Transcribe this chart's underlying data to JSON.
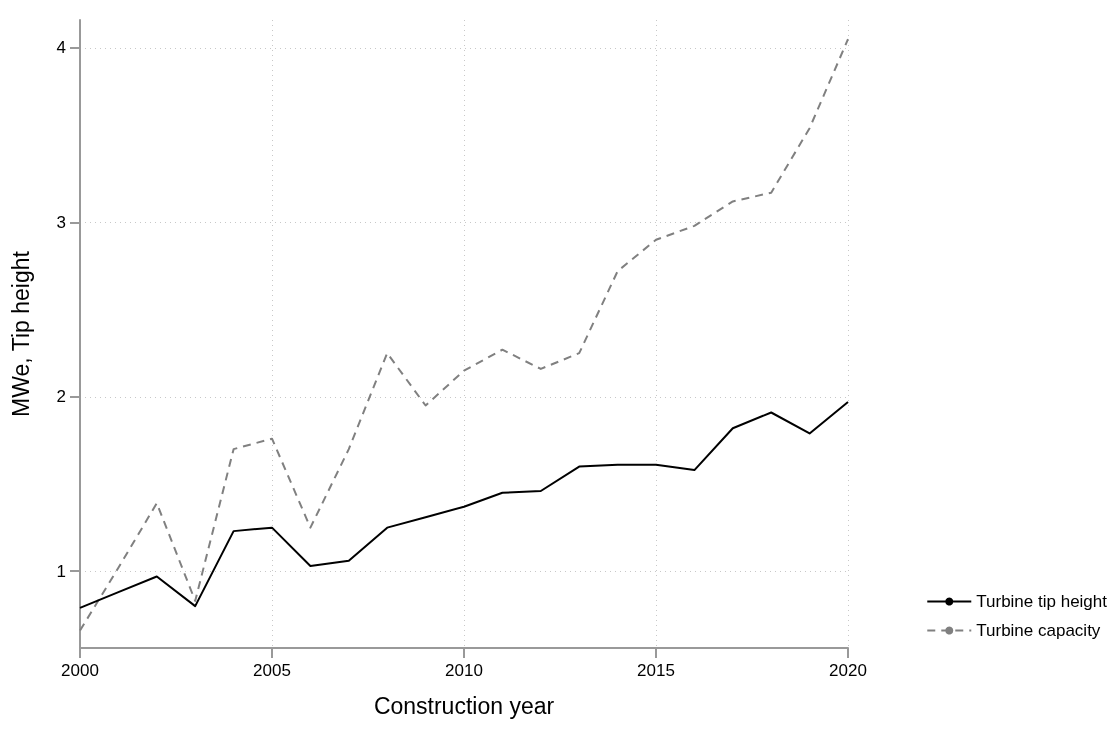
{
  "chart_data": {
    "type": "line",
    "xlabel": "Construction year",
    "ylabel": "MWe, Tip height",
    "x": [
      2000,
      2001,
      2002,
      2003,
      2004,
      2005,
      2006,
      2007,
      2008,
      2009,
      2010,
      2011,
      2012,
      2013,
      2014,
      2015,
      2016,
      2017,
      2018,
      2019,
      2020
    ],
    "series": [
      {
        "name": "Turbine tip height",
        "color": "#000000",
        "line_style": "solid",
        "values": [
          0.79,
          0.88,
          0.97,
          0.8,
          1.23,
          1.25,
          1.03,
          1.06,
          1.25,
          1.31,
          1.37,
          1.45,
          1.46,
          1.6,
          1.61,
          1.61,
          1.58,
          1.82,
          1.91,
          1.79,
          1.97
        ]
      },
      {
        "name": "Turbine capacity",
        "color": "#808080",
        "line_style": "dashed",
        "values": [
          0.66,
          1.02,
          1.39,
          0.83,
          1.7,
          1.76,
          1.25,
          1.7,
          2.25,
          1.95,
          2.15,
          2.27,
          2.16,
          2.25,
          2.72,
          2.9,
          2.98,
          3.12,
          3.17,
          3.54,
          4.05
        ]
      }
    ],
    "xlim": [
      2000,
      2020
    ],
    "xticks": [
      2000,
      2005,
      2010,
      2015,
      2020
    ],
    "ylim": [
      0.56,
      4.16
    ],
    "yticks": [
      1,
      2,
      3,
      4
    ],
    "grid": true,
    "legend": "bottom right",
    "marker": "none"
  }
}
